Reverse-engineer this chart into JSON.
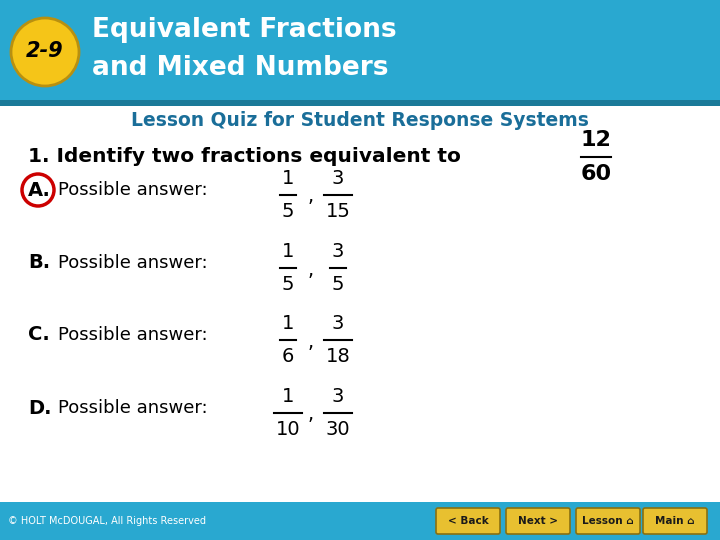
{
  "header_bg_color": "#29a8d0",
  "header_text_color": "#ffffff",
  "header_dark_stripe": "#1a7a99",
  "badge_bg_color": "#f5c518",
  "badge_text_color": "#000000",
  "badge_label": "2-9",
  "header_line1": "Equivalent Fractions",
  "header_line2": "and Mixed Numbers",
  "subtitle": "Lesson Quiz for Student Response Systems",
  "subtitle_color": "#1a6e99",
  "body_bg_color": "#ffffff",
  "question_color": "#000000",
  "answer_A_circle_color": "#cc0000",
  "question_frac_num": "12",
  "question_frac_den": "60",
  "answers": [
    {
      "label": "A.",
      "circled": true,
      "text": "Possible answer:",
      "f1n": "1",
      "f1d": "5",
      "f2n": "3",
      "f2d": "15"
    },
    {
      "label": "B.",
      "circled": false,
      "text": "Possible answer:",
      "f1n": "1",
      "f1d": "5",
      "f2n": "3",
      "f2d": "5"
    },
    {
      "label": "C.",
      "circled": false,
      "text": "Possible answer:",
      "f1n": "1",
      "f1d": "6",
      "f2n": "3",
      "f2d": "18"
    },
    {
      "label": "D.",
      "circled": false,
      "text": "Possible answer:",
      "f1n": "1",
      "f1d": "10",
      "f2n": "3",
      "f2d": "30"
    }
  ],
  "footer_bg_color": "#29a8d0",
  "footer_text": "© HOLT McDOUGAL, All Rights Reserved",
  "footer_text_color": "#ffffff",
  "button_labels": [
    "< Back",
    "Next >",
    "Lesson",
    "Main"
  ],
  "button_bg_color": "#e8c030",
  "button_text_color": "#1a1a1a"
}
